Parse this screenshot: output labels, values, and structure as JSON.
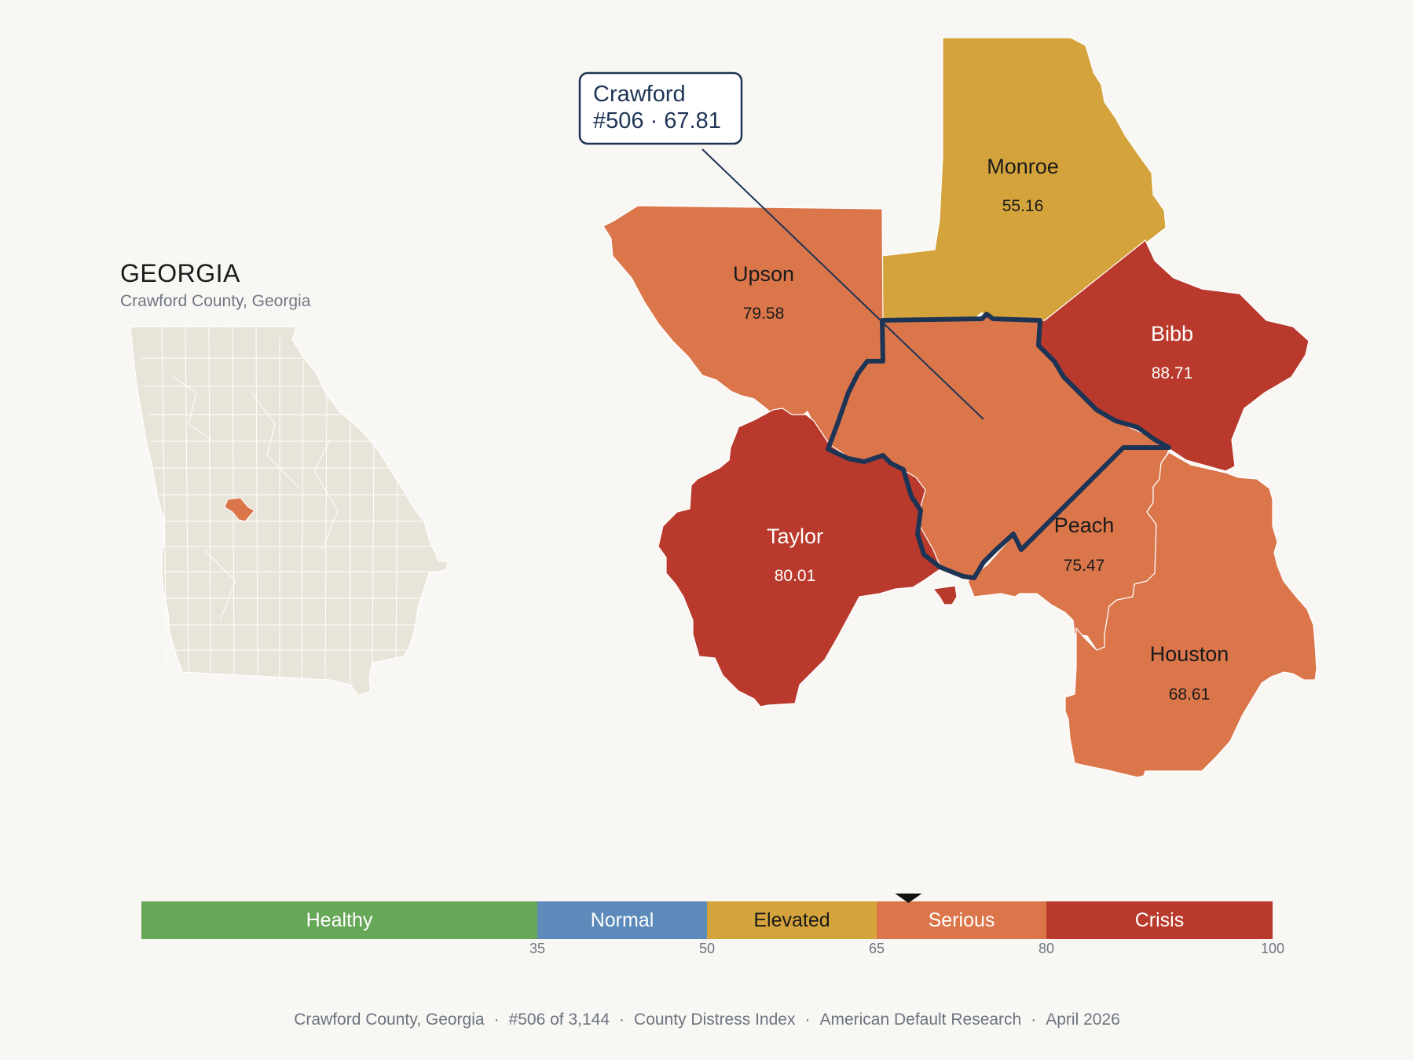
{
  "inset": {
    "state_title": "GEORGIA",
    "subtitle": "Crawford County, Georgia"
  },
  "callout": {
    "county": "Crawford",
    "rank_score": "#506 · 67.81"
  },
  "counties": [
    {
      "id": "monroe",
      "name": "Monroe",
      "score": "55.16",
      "category": "Elevated"
    },
    {
      "id": "upson",
      "name": "Upson",
      "score": "79.58",
      "category": "Serious"
    },
    {
      "id": "bibb",
      "name": "Bibb",
      "score": "88.71",
      "category": "Crisis"
    },
    {
      "id": "taylor",
      "name": "Taylor",
      "score": "80.01",
      "category": "Crisis"
    },
    {
      "id": "peach",
      "name": "Peach",
      "score": "75.47",
      "category": "Serious"
    },
    {
      "id": "houston",
      "name": "Houston",
      "score": "68.61",
      "category": "Serious"
    },
    {
      "id": "crawford",
      "name": "Crawford",
      "score": "67.81",
      "category": "Serious",
      "highlighted": true
    }
  ],
  "scale": {
    "min": 0,
    "max": 100,
    "marker_value": 67.81,
    "bands": [
      {
        "label": "Healthy",
        "from": 0,
        "to": 35,
        "color": "#67a758",
        "text_color": "#ffffff"
      },
      {
        "label": "Normal",
        "from": 35,
        "to": 50,
        "color": "#5b8abb",
        "text_color": "#ffffff"
      },
      {
        "label": "Elevated",
        "from": 50,
        "to": 65,
        "color": "#d4a33b",
        "text_color": "#1b1b1b"
      },
      {
        "label": "Serious",
        "from": 65,
        "to": 80,
        "color": "#db764b",
        "text_color": "#ffffff"
      },
      {
        "label": "Crisis",
        "from": 80,
        "to": 100,
        "color": "#b93a2c",
        "text_color": "#ffffff"
      }
    ],
    "ticks": [
      "35",
      "50",
      "65",
      "80",
      "100"
    ]
  },
  "colors": {
    "background": "#f9f7f4",
    "inset_fill": "#e9e4d9",
    "highlight_outline": "#1e3454",
    "elevated": "#d4a33b",
    "serious": "#db764b",
    "crisis": "#b93a2c"
  },
  "footer": {
    "county": "Crawford County, Georgia",
    "rank": "#506 of 3,144",
    "index": "County Distress Index",
    "source": "American Default Research",
    "date": "April 2026"
  }
}
